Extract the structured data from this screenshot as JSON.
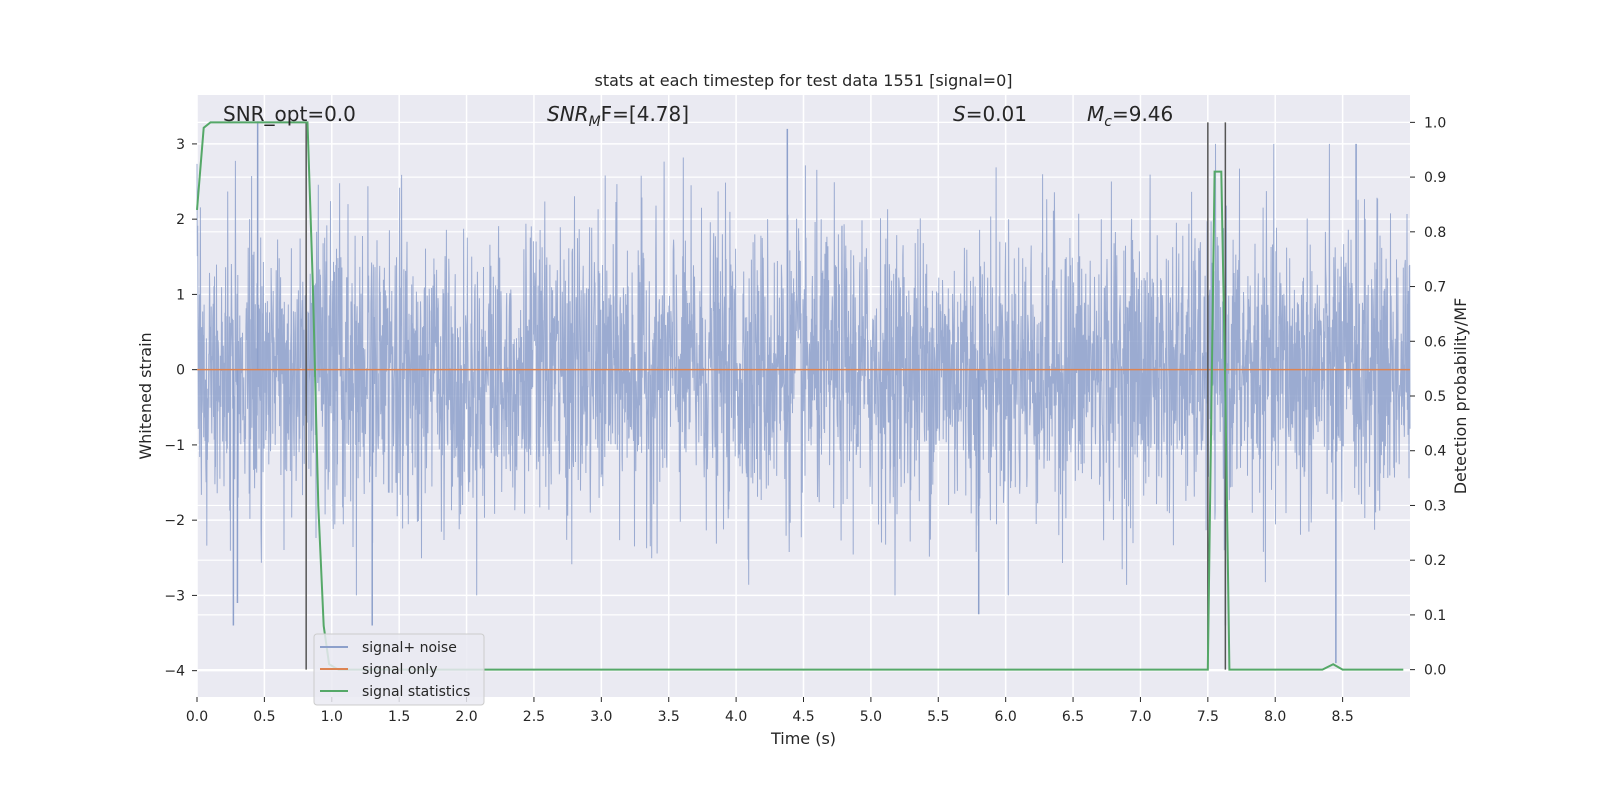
{
  "chart_data": {
    "type": "line",
    "title": "stats at each timestep for test data 1551 [signal=0]",
    "xlabel": "Time (s)",
    "ylabel": "Whitened strain",
    "ylabel_right": "Detection probability/MF",
    "xlim": [
      0.0,
      9.0
    ],
    "ylim": [
      -4.35,
      3.65
    ],
    "ylim_right": [
      -0.05,
      1.05
    ],
    "x_ticks": [
      0.0,
      0.5,
      1.0,
      1.5,
      2.0,
      2.5,
      3.0,
      3.5,
      4.0,
      4.5,
      5.0,
      5.5,
      6.0,
      6.5,
      7.0,
      7.5,
      8.0,
      8.5
    ],
    "x_tick_labels": [
      "0.0",
      "0.5",
      "1.0",
      "1.5",
      "2.0",
      "2.5",
      "3.0",
      "3.5",
      "4.0",
      "4.5",
      "5.0",
      "5.5",
      "6.0",
      "6.5",
      "7.0",
      "7.5",
      "8.0",
      "8.5"
    ],
    "y_ticks": [
      -4,
      -3,
      -2,
      -1,
      0,
      1,
      2,
      3
    ],
    "y_tick_labels": [
      "−4",
      "−3",
      "−2",
      "−1",
      "0",
      "1",
      "2",
      "3"
    ],
    "y_right_ticks": [
      0.0,
      0.1,
      0.2,
      0.3,
      0.4,
      0.5,
      0.6,
      0.7,
      0.8,
      0.9,
      1.0
    ],
    "y_right_tick_labels": [
      "0.0",
      "0.1",
      "0.2",
      "0.3",
      "0.4",
      "0.5",
      "0.6",
      "0.7",
      "0.8",
      "0.9",
      "1.0"
    ],
    "grid": true,
    "legend_position": "lower-left",
    "annotations": {
      "snr_opt": "SNR_opt=0.0",
      "snr_mf_main": "SNR",
      "snr_mf_sub": "M",
      "snr_mf_rest": "F=[4.78]",
      "s_main": "S",
      "s_rest": "=0.01",
      "mc_main": "M",
      "mc_sub": "c",
      "mc_rest": "=9.46"
    },
    "vertical_markers_x": [
      0.81,
      7.5,
      7.63
    ],
    "series": [
      {
        "name": "signal+ noise",
        "color": "#8da0cb",
        "description_values": "whitened noise, approx. Gaussian, amplitude envelope ~[-3.4, 3.3]",
        "peaks": [
          {
            "x": 0.45,
            "y": 3.3
          },
          {
            "x": 0.27,
            "y": -3.4
          },
          {
            "x": 0.3,
            "y": -3.1
          },
          {
            "x": 1.3,
            "y": -3.4
          },
          {
            "x": 4.38,
            "y": 3.2
          },
          {
            "x": 5.8,
            "y": -3.25
          },
          {
            "x": 7.63,
            "y": -3.4
          },
          {
            "x": 8.45,
            "y": -3.9
          },
          {
            "x": 8.6,
            "y": 3.0
          }
        ]
      },
      {
        "name": "signal only",
        "color": "#dd8452",
        "x": [
          0.0,
          9.0
        ],
        "y": [
          0.0,
          0.0
        ]
      },
      {
        "name": "signal statistics",
        "color": "#55a868",
        "axis": "right",
        "x": [
          0.0,
          0.05,
          0.1,
          0.2,
          0.4,
          0.6,
          0.8,
          0.82,
          0.86,
          0.9,
          0.94,
          0.98,
          1.05,
          7.0,
          7.46,
          7.5,
          7.55,
          7.6,
          7.63,
          7.66,
          7.7,
          8.0,
          8.35,
          8.43,
          8.5,
          8.7,
          8.95
        ],
        "y": [
          0.84,
          0.99,
          1.0,
          1.0,
          1.0,
          1.0,
          1.0,
          1.0,
          0.7,
          0.3,
          0.08,
          0.01,
          0.0,
          0.0,
          0.0,
          0.0,
          0.91,
          0.91,
          0.5,
          0.0,
          0.0,
          0.0,
          0.0,
          0.01,
          0.0,
          0.0,
          0.0
        ]
      }
    ]
  }
}
